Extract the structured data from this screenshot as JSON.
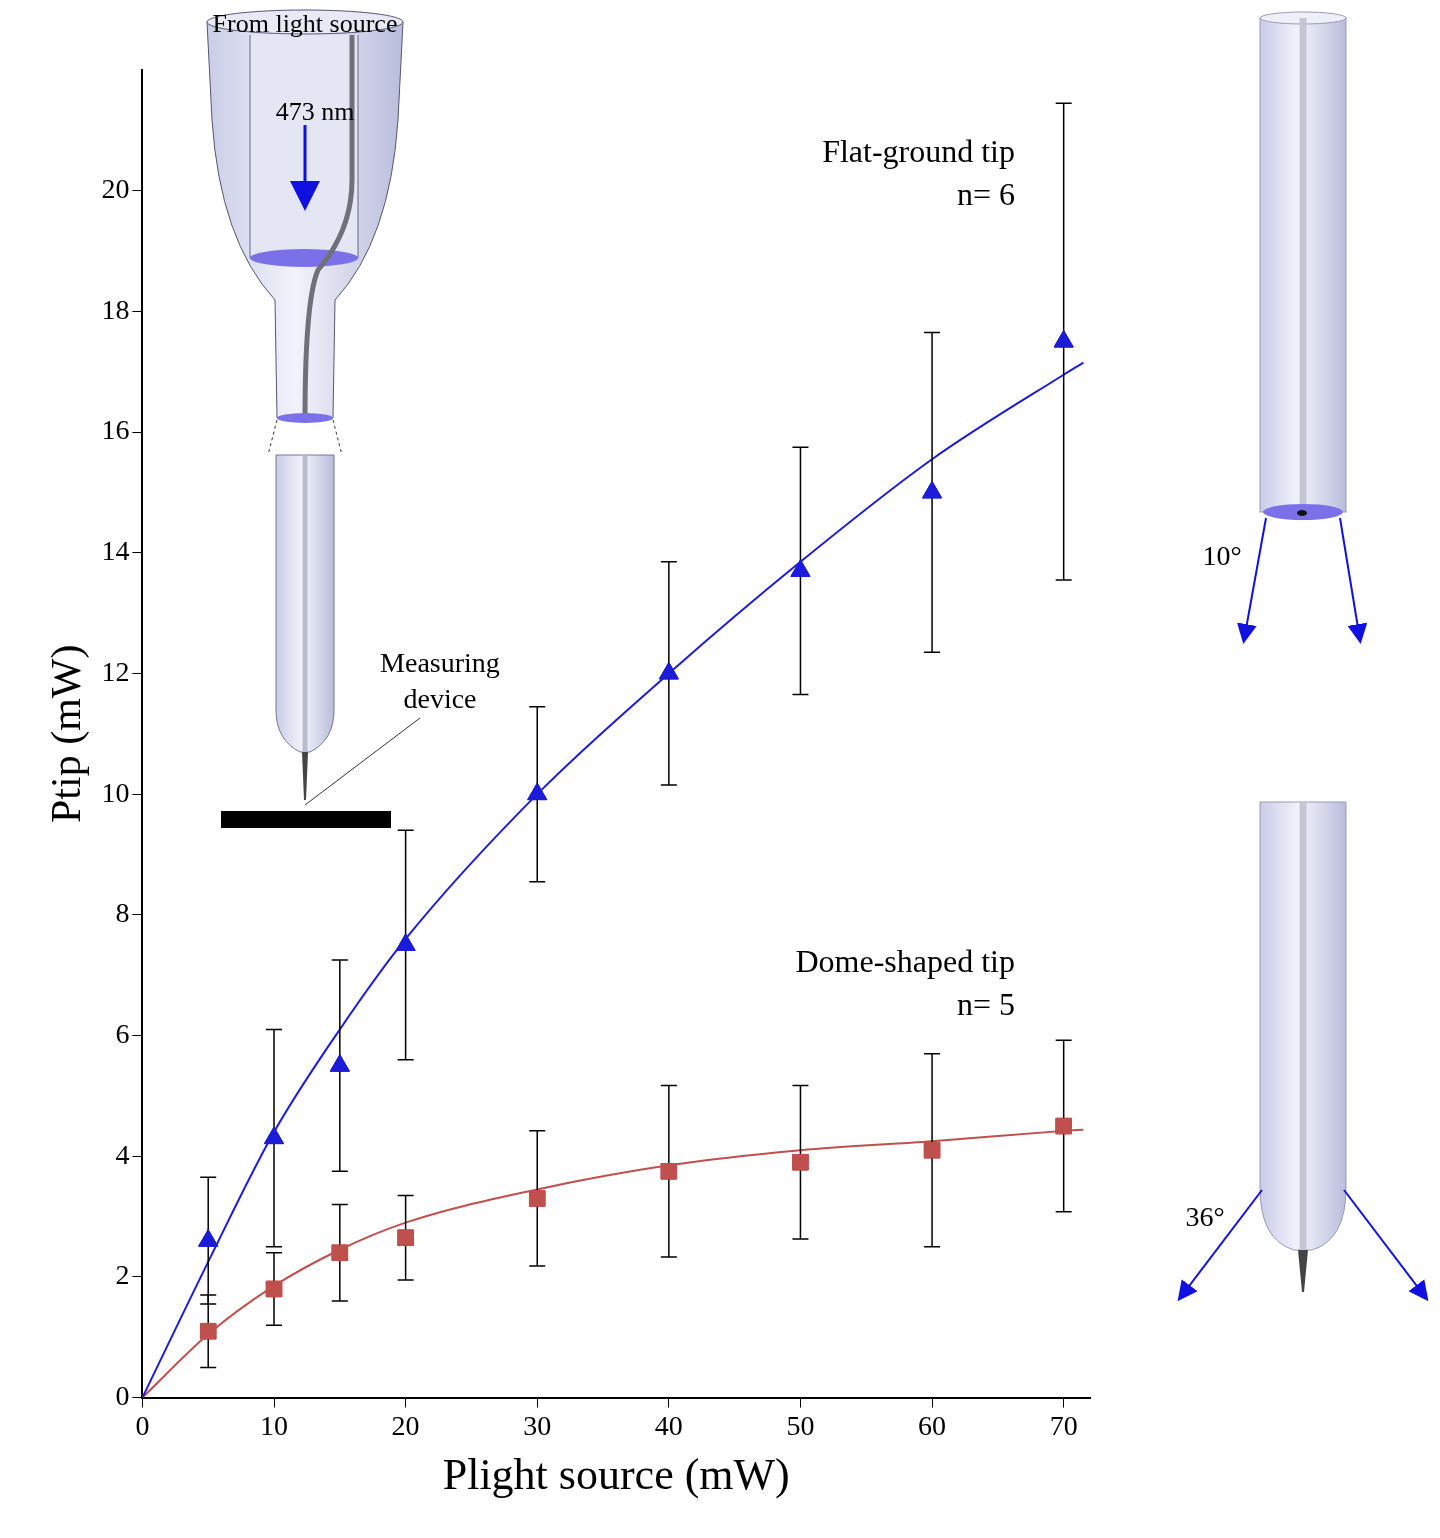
{
  "chart_data": {
    "type": "scatter",
    "x_label": "Plight source (mW)",
    "y_label": "Ptip (mW)",
    "xlim": [
      0,
      72
    ],
    "xticks": [
      0,
      10,
      20,
      30,
      40,
      50,
      60,
      70
    ],
    "ylim": [
      0,
      22
    ],
    "yticks": [
      0,
      2,
      4,
      6,
      8,
      10,
      12,
      14,
      16,
      18,
      20
    ],
    "grid": false,
    "series": [
      {
        "name": "Flat-ground tip",
        "color": "#1c1cd8",
        "marker": "triangle",
        "line_style": "solid",
        "x": [
          5,
          10,
          15,
          20,
          30,
          40,
          50,
          60,
          70
        ],
        "values": [
          2.6,
          4.3,
          5.5,
          7.5,
          10.0,
          12.0,
          13.7,
          15.0,
          17.5
        ],
        "error": [
          1.05,
          1.8,
          1.75,
          1.9,
          1.45,
          1.85,
          2.05,
          2.65,
          3.95
        ],
        "fit": {
          "x": [
            0,
            5,
            10,
            15,
            20,
            30,
            40,
            50,
            60,
            70,
            71.5
          ],
          "values": [
            0,
            2.25,
            4.4,
            6.1,
            7.6,
            10.0,
            12.0,
            13.85,
            15.55,
            16.95,
            17.15
          ]
        }
      },
      {
        "name": "Dome-shaped tip",
        "color": "#c0504d",
        "marker": "square",
        "line_style": "solid",
        "x": [
          5,
          10,
          15,
          20,
          30,
          40,
          50,
          60,
          70
        ],
        "values": [
          1.1,
          1.8,
          2.4,
          2.65,
          3.3,
          3.75,
          3.9,
          4.1,
          4.5
        ],
        "error": [
          0.6,
          0.6,
          0.8,
          0.7,
          1.12,
          1.42,
          1.27,
          1.6,
          1.42
        ],
        "fit": {
          "x": [
            0,
            5,
            10,
            15,
            20,
            30,
            40,
            50,
            60,
            70,
            71.5
          ],
          "values": [
            0,
            1.05,
            1.85,
            2.45,
            2.9,
            3.45,
            3.85,
            4.1,
            4.25,
            4.42,
            4.44
          ]
        }
      }
    ],
    "annotations": [
      "n= 6",
      "n= 5",
      "From light source",
      "473 nm",
      "Measuring device",
      "10°",
      "36°"
    ]
  }
}
